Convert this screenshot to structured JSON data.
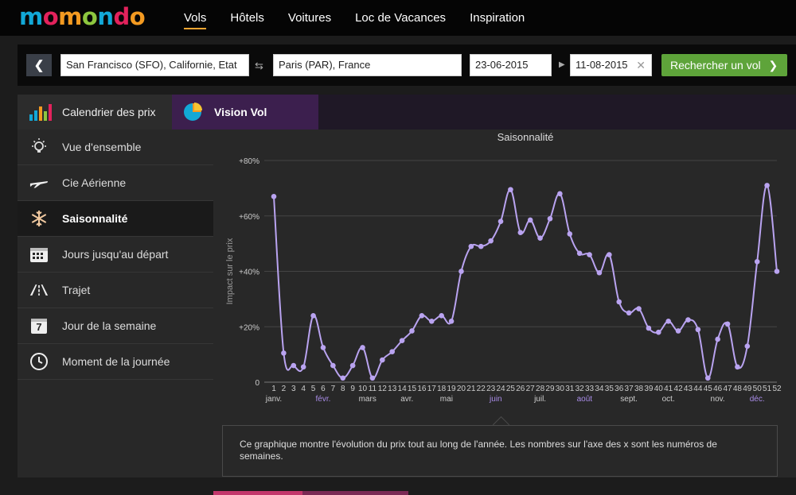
{
  "logo": {
    "letters": [
      "m",
      "o",
      "m",
      "o",
      "n",
      "d",
      "o"
    ],
    "colors": [
      "#12a8d7",
      "#e3225c",
      "#f39a21",
      "#8dc63f",
      "#12a8d7",
      "#e3225c",
      "#f39a21"
    ]
  },
  "nav": {
    "items": [
      "Vols",
      "Hôtels",
      "Voitures",
      "Loc de Vacances",
      "Inspiration"
    ],
    "active": "Vols",
    "accent": "#f6a531"
  },
  "search": {
    "origin": "San Francisco (SFO), Californie, Etat",
    "destination": "Paris (PAR), France",
    "depart": "23-06-2015",
    "return": "11-08-2015",
    "button": "Rechercher un vol",
    "button_color": "#5ea43a"
  },
  "tabs": {
    "price_calendar": "Calendrier des prix",
    "flight_insight": "Vision Vol"
  },
  "sidebar": {
    "items": [
      {
        "label": "Vue d'ensemble",
        "icon": "lightbulb-icon"
      },
      {
        "label": "Cie Aérienne",
        "icon": "airplane-icon"
      },
      {
        "label": "Saisonnalité",
        "icon": "snowflake-icon"
      },
      {
        "label": "Jours jusqu'au départ",
        "icon": "calendar-grid-icon"
      },
      {
        "label": "Trajet",
        "icon": "road-icon"
      },
      {
        "label": "Jour de la semaine",
        "icon": "calendar-day-icon"
      },
      {
        "label": "Moment de la journée",
        "icon": "clock-icon"
      }
    ],
    "active": "Saisonnalité",
    "calendar_day": "7"
  },
  "chart_data": {
    "type": "line",
    "title": "Saisonnalité",
    "xlabel": "",
    "ylabel": "Impact sur le prix",
    "ylim": [
      0,
      80
    ],
    "y_ticks": [
      "0",
      "+20%",
      "+40%",
      "+60%",
      "+80%"
    ],
    "y_tick_values": [
      0,
      20,
      40,
      60,
      80
    ],
    "x": [
      1,
      2,
      3,
      4,
      5,
      6,
      7,
      8,
      9,
      10,
      11,
      12,
      13,
      14,
      15,
      16,
      17,
      18,
      19,
      20,
      21,
      22,
      23,
      24,
      25,
      26,
      27,
      28,
      29,
      30,
      31,
      32,
      33,
      34,
      35,
      36,
      37,
      38,
      39,
      40,
      41,
      42,
      43,
      44,
      45,
      46,
      47,
      48,
      49,
      50,
      51,
      52
    ],
    "values": [
      67,
      10.5,
      6,
      5.5,
      24,
      12.5,
      6,
      1.5,
      6,
      12.5,
      1.5,
      8,
      11,
      15,
      18.5,
      24,
      22,
      24,
      22,
      40,
      49,
      49,
      51,
      58,
      69.5,
      54,
      58.5,
      52,
      59,
      68,
      53.5,
      46.5,
      46,
      39.5,
      46,
      29,
      25,
      26.5,
      19.5,
      18,
      22,
      18.5,
      22.5,
      19,
      1.5,
      15.5,
      21,
      5.5,
      13,
      43.5,
      71,
      40
    ],
    "months": [
      {
        "label": "janv.",
        "week": 1
      },
      {
        "label": "févr.",
        "week": 6
      },
      {
        "label": "mars",
        "week": 10.5
      },
      {
        "label": "avr.",
        "week": 14.5
      },
      {
        "label": "mai",
        "week": 18.5
      },
      {
        "label": "juin",
        "week": 23.5
      },
      {
        "label": "juil.",
        "week": 28
      },
      {
        "label": "août",
        "week": 32.5
      },
      {
        "label": "sept.",
        "week": 37
      },
      {
        "label": "oct.",
        "week": 41
      },
      {
        "label": "nov.",
        "week": 46
      },
      {
        "label": "déc.",
        "week": 50
      }
    ],
    "line_color": "#b9a3f0",
    "highlight_month_color": "#a98ce8",
    "grid": true
  },
  "tooltip": {
    "text": "Ce graphique montre l'évolution du prix tout au long de l'année. Les nombres sur l'axe des x sont les numéros de semaines."
  }
}
